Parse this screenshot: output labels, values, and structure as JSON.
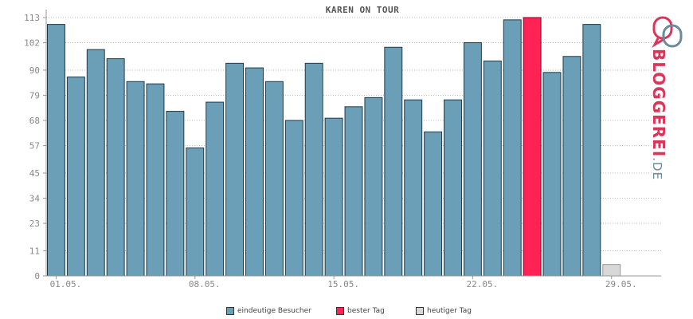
{
  "chart_data": {
    "type": "bar",
    "title": "KAREN ON TOUR",
    "ylim": [
      0,
      113
    ],
    "yticks": [
      0,
      11,
      23,
      34,
      45,
      57,
      68,
      79,
      90,
      102,
      113
    ],
    "xtick_labels": [
      "01.05.",
      "08.05.",
      "15.05.",
      "22.05.",
      "29.05."
    ],
    "categories": [
      "01.05.",
      "02.05.",
      "03.05.",
      "04.05.",
      "05.05.",
      "06.05.",
      "07.05.",
      "08.05.",
      "09.05.",
      "10.05.",
      "11.05.",
      "12.05.",
      "13.05.",
      "14.05.",
      "15.05.",
      "16.05.",
      "17.05.",
      "18.05.",
      "19.05.",
      "20.05.",
      "21.05.",
      "22.05.",
      "23.05.",
      "24.05.",
      "25.05.",
      "26.05.",
      "27.05.",
      "28.05.",
      "29.05.",
      "30.05.",
      "31.05."
    ],
    "values": [
      110,
      87,
      99,
      95,
      85,
      84,
      72,
      56,
      76,
      93,
      91,
      85,
      68,
      93,
      69,
      74,
      78,
      100,
      77,
      63,
      77,
      102,
      94,
      112,
      113,
      89,
      96,
      110,
      5,
      null,
      null
    ],
    "best_index": 24,
    "today_index": 28,
    "grid": true,
    "legend_position": "bottom-center",
    "colors": {
      "visitors": "#6b9fb8",
      "best": "#ff2255",
      "today": "#d8d8d8",
      "grid": "#bbbbbb",
      "axis": "#999999"
    },
    "legend": [
      {
        "label": "eindeutige Besucher",
        "color": "#6b9fb8"
      },
      {
        "label": "bester Tag",
        "color": "#ff2255"
      },
      {
        "label": "heutiger Tag",
        "color": "#d8d8d8"
      }
    ]
  },
  "logo": {
    "text": "BLOGGEREI",
    "suffix": ".DE",
    "icon": "bloggerei-logo-icon",
    "colors": {
      "main": "#d9365a",
      "suffix": "#6c8a9e"
    }
  }
}
